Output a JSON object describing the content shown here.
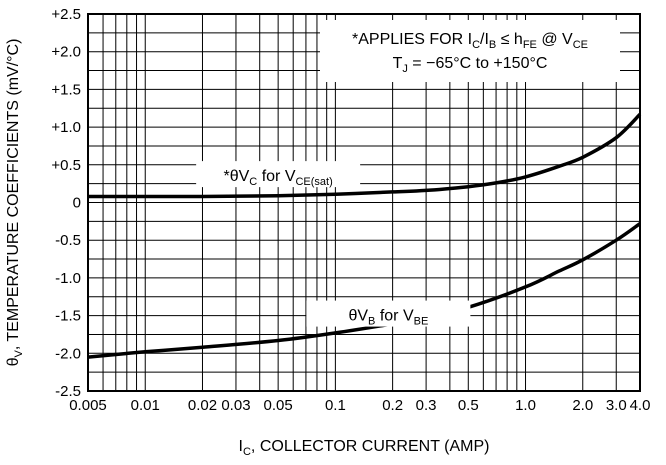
{
  "chart_data": {
    "type": "line",
    "x_scale": "log",
    "xlim": [
      0.005,
      4.0
    ],
    "ylim": [
      -2.5,
      2.5
    ],
    "grid": true,
    "xlabel": {
      "main": "I",
      "sub": "C",
      "tail": ", COLLECTOR CURRENT (AMP)"
    },
    "ylabel": {
      "main": "θ",
      "sub": "V",
      "tail": ", TEMPERATURE COEFFICIENTS (mV/°C)"
    },
    "x_tick_labels": [
      {
        "value": 0.005,
        "label": "0.005"
      },
      {
        "value": 0.01,
        "label": "0.01"
      },
      {
        "value": 0.02,
        "label": "0.02"
      },
      {
        "value": 0.03,
        "label": "0.03"
      },
      {
        "value": 0.05,
        "label": "0.05"
      },
      {
        "value": 0.1,
        "label": "0.1"
      },
      {
        "value": 0.2,
        "label": "0.2"
      },
      {
        "value": 0.3,
        "label": "0.3"
      },
      {
        "value": 0.5,
        "label": "0.5"
      },
      {
        "value": 1.0,
        "label": "1.0"
      },
      {
        "value": 2.0,
        "label": "2.0"
      },
      {
        "value": 3.0,
        "label": "3.0"
      },
      {
        "value": 4.0,
        "label": "4.0"
      }
    ],
    "y_tick_labels": [
      {
        "value": 2.5,
        "label": "+2.5"
      },
      {
        "value": 2.0,
        "label": "+2.0"
      },
      {
        "value": 1.5,
        "label": "+1.5"
      },
      {
        "value": 1.0,
        "label": "+1.0"
      },
      {
        "value": 0.5,
        "label": "+0.5"
      },
      {
        "value": 0.0,
        "label": "0"
      },
      {
        "value": -0.5,
        "label": "-0.5"
      },
      {
        "value": -1.0,
        "label": "-1.0"
      },
      {
        "value": -1.5,
        "label": "-1.5"
      },
      {
        "value": -2.0,
        "label": "-2.0"
      },
      {
        "value": -2.5,
        "label": "-2.5"
      }
    ],
    "series": [
      {
        "label": [
          {
            "t": "*θV"
          },
          {
            "t": "C",
            "sub": true
          },
          {
            "t": " for V"
          },
          {
            "t": "CE(sat)",
            "sub": true
          }
        ],
        "label_at": {
          "x": 0.05,
          "y": 0.35
        },
        "points": [
          [
            0.005,
            0.08
          ],
          [
            0.01,
            0.08
          ],
          [
            0.02,
            0.08
          ],
          [
            0.05,
            0.09
          ],
          [
            0.1,
            0.11
          ],
          [
            0.2,
            0.14
          ],
          [
            0.3,
            0.16
          ],
          [
            0.5,
            0.21
          ],
          [
            0.7,
            0.26
          ],
          [
            1.0,
            0.34
          ],
          [
            1.5,
            0.48
          ],
          [
            2.0,
            0.6
          ],
          [
            3.0,
            0.86
          ],
          [
            4.0,
            1.17
          ]
        ]
      },
      {
        "label": [
          {
            "t": "θV"
          },
          {
            "t": "B",
            "sub": true
          },
          {
            "t": " for V"
          },
          {
            "t": "BE",
            "sub": true
          }
        ],
        "label_at": {
          "x": 0.19,
          "y": -1.5
        },
        "points": [
          [
            0.005,
            -2.05
          ],
          [
            0.01,
            -1.98
          ],
          [
            0.02,
            -1.92
          ],
          [
            0.05,
            -1.83
          ],
          [
            0.1,
            -1.73
          ],
          [
            0.2,
            -1.61
          ],
          [
            0.3,
            -1.53
          ],
          [
            0.5,
            -1.39
          ],
          [
            1.0,
            -1.12
          ],
          [
            1.5,
            -0.91
          ],
          [
            2.0,
            -0.76
          ],
          [
            3.0,
            -0.5
          ],
          [
            4.0,
            -0.28
          ]
        ]
      }
    ],
    "annotation": [
      [
        {
          "t": "*APPLIES FOR I"
        },
        {
          "t": "C",
          "sub": true
        },
        {
          "t": "/I"
        },
        {
          "t": "B",
          "sub": true
        },
        {
          "t": " ≤ h"
        },
        {
          "t": "FE",
          "sub": true
        },
        {
          "t": " @ V"
        },
        {
          "t": "CE",
          "sub": true
        }
      ],
      [
        {
          "t": "T"
        },
        {
          "t": "J",
          "sub": true
        },
        {
          "t": " = −65°C to +150°C"
        }
      ]
    ],
    "annotation_at": {
      "x": 0.5,
      "y": [
        2.0,
        1.75
      ]
    }
  }
}
